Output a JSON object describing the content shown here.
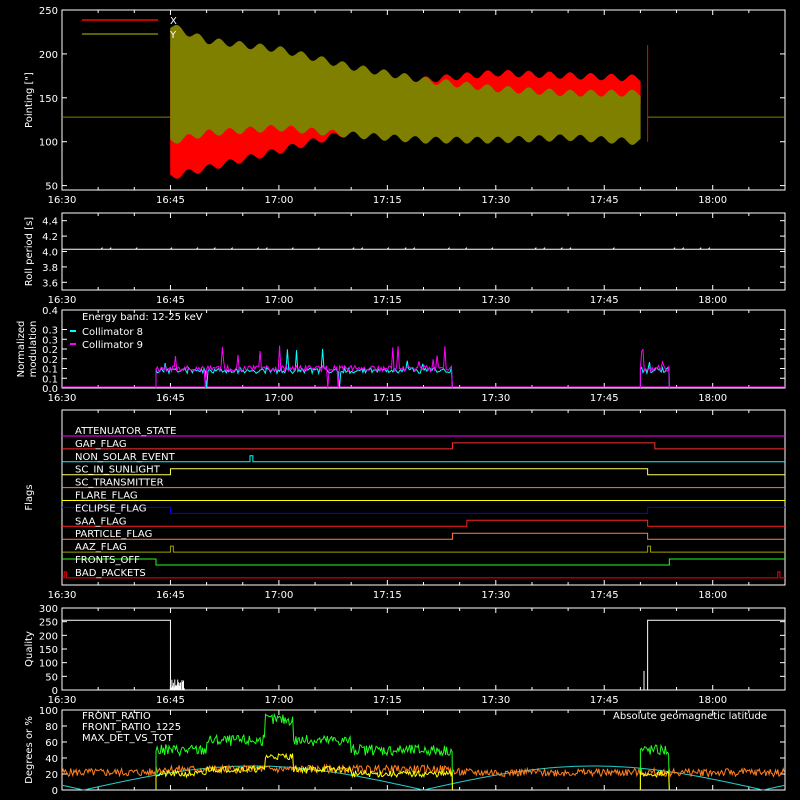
{
  "colors": {
    "background": "#000000",
    "foreground": "#ffffff"
  },
  "chart_data": [
    {
      "type": "line",
      "ylabel": "Pointing [\"]",
      "ylim": [
        45,
        250
      ],
      "yticks": [
        "50",
        "100",
        "150",
        "200",
        "250"
      ],
      "xticks": [
        "16:30",
        "16:45",
        "17:00",
        "17:15",
        "17:30",
        "17:45",
        "18:00"
      ],
      "series": [
        {
          "name": "X",
          "color": "#ff0000",
          "envelope": [
            [
              "16:45",
              128,
              128
            ],
            [
              "16:45",
              60,
              210
            ],
            [
              "16:50",
              70,
              155
            ],
            [
              "17:00",
              90,
              148
            ],
            [
              "17:10",
              112,
              160
            ],
            [
              "17:20",
              130,
              170
            ],
            [
              "17:30",
              142,
              178
            ],
            [
              "17:40",
              140,
              175
            ],
            [
              "17:50",
              140,
              172
            ],
            [
              "17:51",
              128,
              128
            ]
          ]
        },
        {
          "name": "Y",
          "color": "#808000",
          "envelope": [
            [
              "16:45",
              128,
              128
            ],
            [
              "16:45",
              100,
              232
            ],
            [
              "16:50",
              110,
              215
            ],
            [
              "17:00",
              116,
              205
            ],
            [
              "17:10",
              108,
              185
            ],
            [
              "17:20",
              102,
              170
            ],
            [
              "17:30",
              102,
              160
            ],
            [
              "17:40",
              105,
              155
            ],
            [
              "17:50",
              100,
              155
            ],
            [
              "17:51",
              128,
              128
            ]
          ]
        }
      ],
      "baseline": 128
    },
    {
      "type": "line",
      "ylabel": "Roll period [s]",
      "ylim": [
        3.5,
        4.5
      ],
      "yticks": [
        "3.6",
        "3.8",
        "4.0",
        "4.2",
        "4.4"
      ],
      "xticks": [
        "16:30",
        "16:45",
        "17:00",
        "17:15",
        "17:30",
        "17:45",
        "18:00"
      ],
      "series": [
        {
          "color": "#ffffff",
          "value": 4.03
        }
      ]
    },
    {
      "type": "line",
      "ylabel": [
        "Normalized",
        "modulation"
      ],
      "ylim": [
        0,
        0.4
      ],
      "yticks": [
        "0.0",
        "0.1",
        "0.1",
        "0.2",
        "0.2",
        "0.3",
        "0.3",
        "0.4"
      ],
      "xticks": [
        "16:30",
        "16:45",
        "17:00",
        "17:15",
        "17:30",
        "17:45",
        "18:00"
      ],
      "legend_text": "Energy band: 12-25 keV",
      "series": [
        {
          "name": "Collimator 8",
          "color": "#00ffff",
          "segments": [
            [
              "16:43",
              "17:24"
            ],
            [
              "17:50",
              "17:54"
            ]
          ],
          "level": 0.09
        },
        {
          "name": "Collimator 9",
          "color": "#ff00ff",
          "segments": [
            [
              "16:43",
              "17:24"
            ],
            [
              "17:50",
              "17:54"
            ]
          ],
          "level": 0.1
        }
      ]
    },
    {
      "type": "line",
      "ylabel": "Flags",
      "xticks": [
        "16:30",
        "16:45",
        "17:00",
        "17:15",
        "17:30",
        "17:45",
        "18:00"
      ],
      "flags": [
        {
          "name": "ATTENUATOR_STATE",
          "color": "#ff00ff",
          "steps": [
            [
              "16:30",
              0
            ]
          ]
        },
        {
          "name": "GAP_FLAG",
          "color": "#ff3030",
          "steps": [
            [
              "16:30",
              0
            ],
            [
              "17:24",
              1
            ],
            [
              "17:52",
              0
            ]
          ]
        },
        {
          "name": "NON_SOLAR_EVENT",
          "color": "#00ffff",
          "steps": [
            [
              "16:30",
              0
            ],
            [
              "16:56",
              1
            ],
            [
              "16:56.4",
              0
            ]
          ]
        },
        {
          "name": "SC_IN_SUNLIGHT",
          "color": "#ffff60",
          "steps": [
            [
              "16:30",
              0
            ],
            [
              "16:45",
              1
            ],
            [
              "17:51",
              0
            ]
          ]
        },
        {
          "name": "SC_TRANSMITTER",
          "color": "#ff8020",
          "steps": [
            [
              "16:30",
              0
            ]
          ]
        },
        {
          "name": "FLARE_FLAG",
          "color": "#ffff00",
          "steps": [
            [
              "16:30",
              0
            ]
          ]
        },
        {
          "name": "ECLIPSE_FLAG",
          "color": "#0000ff",
          "steps": [
            [
              "16:30",
              1
            ],
            [
              "16:45",
              0
            ],
            [
              "17:51",
              1
            ]
          ]
        },
        {
          "name": "SAA_FLAG",
          "color": "#ff2020",
          "steps": [
            [
              "16:30",
              0
            ],
            [
              "17:26",
              1
            ],
            [
              "17:51",
              0
            ]
          ]
        },
        {
          "name": "PARTICLE_FLAG",
          "color": "#ff8040",
          "steps": [
            [
              "16:30",
              0
            ],
            [
              "17:24",
              1
            ],
            [
              "17:51",
              0
            ]
          ]
        },
        {
          "name": "AAZ_FLAG",
          "color": "#a0a000",
          "steps": [
            [
              "16:30",
              0
            ],
            [
              "16:45",
              1
            ],
            [
              "16:45.4",
              0
            ],
            [
              "17:51",
              1
            ],
            [
              "17:51.4",
              0
            ]
          ]
        },
        {
          "name": "FRONTS_OFF",
          "color": "#20ff20",
          "steps": [
            [
              "16:30",
              1
            ],
            [
              "16:43",
              0
            ],
            [
              "17:54",
              1
            ]
          ]
        },
        {
          "name": "BAD_PACKETS",
          "color": "#ff0000",
          "steps": [
            [
              "16:30",
              0
            ],
            [
              "16:30.3",
              1
            ],
            [
              "16:30.6",
              0
            ],
            [
              "18:09",
              1
            ],
            [
              "18:09.3",
              0
            ]
          ]
        }
      ]
    },
    {
      "type": "line",
      "ylabel": "Quality",
      "ylim": [
        0,
        300
      ],
      "yticks": [
        "0",
        "50",
        "100",
        "150",
        "200",
        "250",
        "300"
      ],
      "xticks": [
        "16:30",
        "16:45",
        "17:00",
        "17:15",
        "17:30",
        "17:45",
        "18:00"
      ],
      "series": [
        {
          "color": "#ffffff",
          "steps": [
            [
              "16:30",
              255
            ],
            [
              "16:45",
              0
            ],
            [
              "17:51",
              255
            ]
          ]
        }
      ]
    },
    {
      "type": "line",
      "ylabel": "Degrees or %",
      "ylim": [
        0,
        100
      ],
      "yticks": [
        "0",
        "20",
        "40",
        "60",
        "80",
        "100"
      ],
      "annotation": "Absolute geomagnetic latitude",
      "series": [
        {
          "name": "FRONT_RATIO",
          "color": "#ffff00",
          "segments": [
            [
              "16:43",
              "17:24"
            ],
            [
              "17:50",
              "17:54"
            ]
          ],
          "level": 20
        },
        {
          "name": "FRONT_RATIO_1225",
          "color": "#20ff20",
          "segments": [
            [
              "16:43",
              "17:24"
            ],
            [
              "17:50",
              "17:54"
            ]
          ],
          "level": 50
        },
        {
          "name": "MAX_DET_VS_TOT",
          "color": "#ff8020",
          "level": 22
        },
        {
          "color": "#20d0d0",
          "amplitude": 30
        }
      ]
    }
  ]
}
